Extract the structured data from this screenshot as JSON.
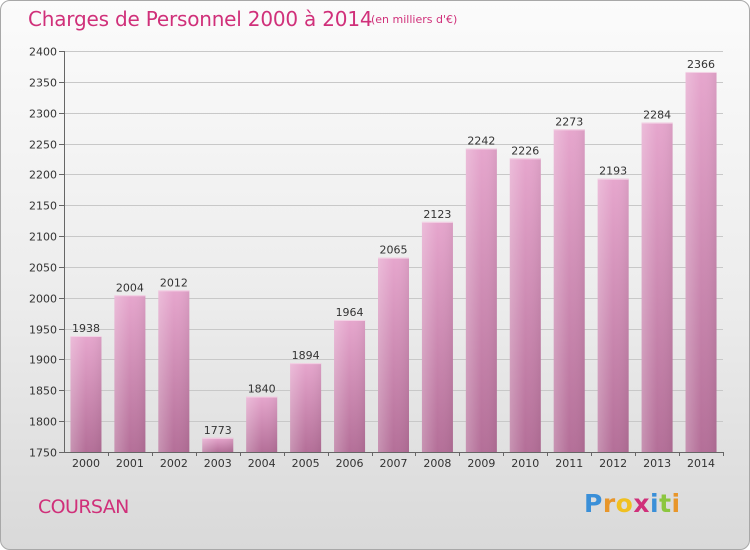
{
  "header": {
    "title": "Charges de Personnel 2000 à 2014",
    "subtitle": "(en milliers d'€)"
  },
  "footer": {
    "commune": "COURSAN",
    "logo_text": "Proxiti"
  },
  "colors": {
    "title": "#d0307a",
    "bar_top": "#e6a6cd",
    "bar_bottom": "#b46f98",
    "logo": [
      "#3a8fd8",
      "#e8962a",
      "#f0c020",
      "#d0307a",
      "#3a8fd8",
      "#8cc63f",
      "#e8962a"
    ]
  },
  "chart_data": {
    "type": "bar",
    "categories": [
      "2000",
      "2001",
      "2002",
      "2003",
      "2004",
      "2005",
      "2006",
      "2007",
      "2008",
      "2009",
      "2010",
      "2011",
      "2012",
      "2013",
      "2014"
    ],
    "values": [
      1938,
      2004,
      2012,
      1773,
      1840,
      1894,
      1964,
      2065,
      2123,
      2242,
      2226,
      2273,
      2193,
      2284,
      2366
    ],
    "ylim": [
      1750,
      2400
    ],
    "yticks": [
      1750,
      1800,
      1850,
      1900,
      1950,
      2000,
      2050,
      2100,
      2150,
      2200,
      2250,
      2300,
      2350,
      2400
    ],
    "grid": true,
    "legend": "none"
  }
}
